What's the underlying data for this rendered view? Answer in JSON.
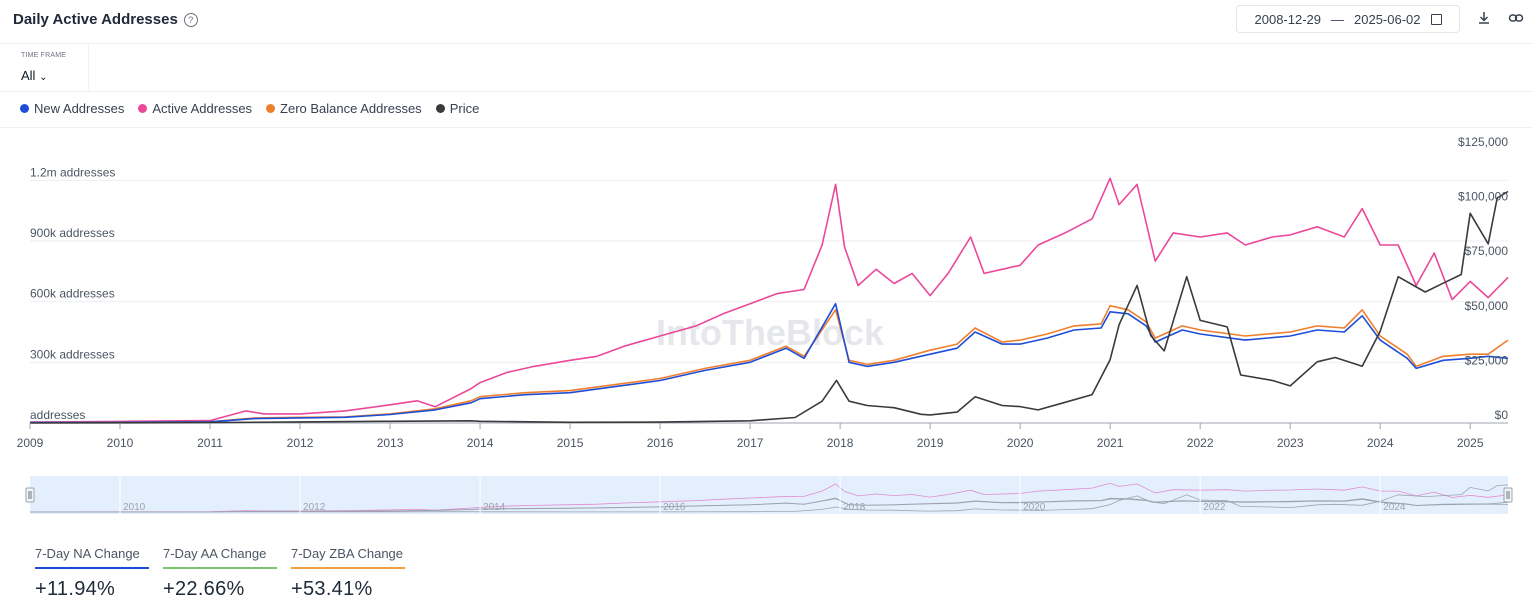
{
  "header": {
    "title": "Daily Active Addresses",
    "help_icon": "help-circle-icon",
    "date_from": "2008-12-29",
    "date_sep": "—",
    "date_to": "2025-06-02",
    "calendar_icon": "calendar-icon",
    "download_icon": "download-icon",
    "link_icon": "link-icon"
  },
  "timeframe": {
    "label": "TIME FRAME",
    "value": "All"
  },
  "legend": [
    {
      "name": "New Addresses",
      "color": "#1d4ed8"
    },
    {
      "name": "Active Addresses",
      "color": "#ec4899"
    },
    {
      "name": "Zero Balance Addresses",
      "color": "#f07f2d"
    },
    {
      "name": "Price",
      "color": "#3a3a3a"
    }
  ],
  "watermark": "IntoTheBlock",
  "stats": [
    {
      "label": "7-Day NA Change",
      "value": "+11.94%",
      "color": "#1d4ed8"
    },
    {
      "label": "7-Day AA Change",
      "value": "+22.66%",
      "color": "#7cc36e"
    },
    {
      "label": "7-Day ZBA Change",
      "value": "+53.41%",
      "color": "#f0a040"
    }
  ],
  "chart_data": {
    "type": "line",
    "x_ticks": [
      "2009",
      "2010",
      "2011",
      "2012",
      "2013",
      "2014",
      "2015",
      "2016",
      "2017",
      "2018",
      "2019",
      "2020",
      "2021",
      "2022",
      "2023",
      "2024",
      "2025"
    ],
    "y_left_ticks": [
      "addresses",
      "300k addresses",
      "600k addresses",
      "900k addresses",
      "1.2m addresses"
    ],
    "y_left_values": [
      0,
      300000,
      600000,
      900000,
      1200000
    ],
    "y_left_range": [
      0,
      1350000
    ],
    "y_right_ticks": [
      "$0",
      "$25,000",
      "$50,000",
      "$75,000",
      "$100,000",
      "$125,000"
    ],
    "y_right_values": [
      0,
      25000,
      50000,
      75000,
      100000,
      125000
    ],
    "y_right_range": [
      0,
      125000
    ],
    "x_range": [
      2009.0,
      2025.42
    ],
    "navigator_ticks": [
      "2010",
      "2012",
      "2014",
      "2016",
      "2018",
      "2020",
      "2022",
      "2024"
    ],
    "series": [
      {
        "name": "Active Addresses",
        "axis": "left",
        "color": "#ec4899",
        "x": [
          2009.0,
          2010.0,
          2011.0,
          2011.4,
          2011.6,
          2012.0,
          2012.5,
          2013.0,
          2013.3,
          2013.5,
          2013.9,
          2014.0,
          2014.3,
          2014.6,
          2015.0,
          2015.3,
          2015.6,
          2016.0,
          2016.4,
          2016.7,
          2017.0,
          2017.3,
          2017.6,
          2017.8,
          2017.95,
          2018.05,
          2018.2,
          2018.4,
          2018.6,
          2018.8,
          2019.0,
          2019.2,
          2019.45,
          2019.6,
          2019.8,
          2020.0,
          2020.2,
          2020.5,
          2020.8,
          2021.0,
          2021.1,
          2021.3,
          2021.5,
          2021.7,
          2022.0,
          2022.3,
          2022.5,
          2022.8,
          2023.0,
          2023.3,
          2023.6,
          2023.8,
          2024.0,
          2024.2,
          2024.4,
          2024.6,
          2024.8,
          2025.0,
          2025.2,
          2025.42
        ],
        "y": [
          5000,
          8000,
          12000,
          60000,
          45000,
          45000,
          60000,
          90000,
          110000,
          80000,
          170000,
          200000,
          250000,
          280000,
          310000,
          330000,
          380000,
          430000,
          480000,
          540000,
          590000,
          640000,
          660000,
          880000,
          1180000,
          870000,
          680000,
          760000,
          690000,
          740000,
          630000,
          740000,
          920000,
          740000,
          760000,
          780000,
          880000,
          940000,
          1010000,
          1210000,
          1080000,
          1180000,
          800000,
          940000,
          920000,
          940000,
          880000,
          920000,
          930000,
          970000,
          920000,
          1060000,
          880000,
          880000,
          680000,
          840000,
          610000,
          700000,
          620000,
          720000
        ]
      },
      {
        "name": "Zero Balance Addresses",
        "axis": "left",
        "color": "#f07f2d",
        "x": [
          2009.0,
          2010.0,
          2011.0,
          2011.5,
          2012.0,
          2012.5,
          2013.0,
          2013.5,
          2013.9,
          2014.0,
          2014.5,
          2015.0,
          2015.5,
          2016.0,
          2016.5,
          2017.0,
          2017.4,
          2017.6,
          2017.95,
          2018.1,
          2018.3,
          2018.6,
          2019.0,
          2019.3,
          2019.5,
          2019.8,
          2020.0,
          2020.3,
          2020.6,
          2020.9,
          2021.0,
          2021.2,
          2021.4,
          2021.5,
          2021.8,
          2022.0,
          2022.5,
          2023.0,
          2023.3,
          2023.6,
          2023.8,
          2024.0,
          2024.3,
          2024.4,
          2024.7,
          2025.0,
          2025.2,
          2025.42
        ],
        "y": [
          2000,
          3000,
          6000,
          25000,
          28000,
          30000,
          45000,
          70000,
          110000,
          130000,
          150000,
          160000,
          190000,
          220000,
          270000,
          310000,
          380000,
          330000,
          560000,
          310000,
          290000,
          310000,
          360000,
          390000,
          470000,
          400000,
          410000,
          440000,
          480000,
          490000,
          580000,
          560000,
          500000,
          420000,
          480000,
          460000,
          430000,
          450000,
          480000,
          470000,
          560000,
          430000,
          340000,
          280000,
          330000,
          340000,
          340000,
          410000
        ]
      },
      {
        "name": "New Addresses",
        "axis": "left",
        "color": "#1d4ed8",
        "x": [
          2009.0,
          2010.0,
          2011.0,
          2011.5,
          2012.0,
          2012.5,
          2013.0,
          2013.5,
          2013.9,
          2014.0,
          2014.5,
          2015.0,
          2015.5,
          2016.0,
          2016.5,
          2017.0,
          2017.4,
          2017.6,
          2017.95,
          2018.1,
          2018.3,
          2018.6,
          2019.0,
          2019.3,
          2019.5,
          2019.8,
          2020.0,
          2020.3,
          2020.6,
          2020.9,
          2021.0,
          2021.2,
          2021.4,
          2021.5,
          2021.8,
          2022.0,
          2022.5,
          2023.0,
          2023.3,
          2023.6,
          2023.8,
          2024.0,
          2024.3,
          2024.4,
          2024.7,
          2025.0,
          2025.2,
          2025.42
        ],
        "y": [
          2000,
          3000,
          6000,
          22000,
          25000,
          28000,
          42000,
          65000,
          100000,
          120000,
          140000,
          150000,
          180000,
          210000,
          260000,
          300000,
          370000,
          320000,
          590000,
          300000,
          280000,
          300000,
          340000,
          370000,
          450000,
          390000,
          390000,
          420000,
          460000,
          470000,
          550000,
          540000,
          480000,
          400000,
          460000,
          440000,
          410000,
          430000,
          460000,
          450000,
          530000,
          410000,
          320000,
          270000,
          310000,
          320000,
          330000,
          320000
        ]
      },
      {
        "name": "Price",
        "axis": "right",
        "color": "#3a3a3a",
        "x": [
          2009.0,
          2011.0,
          2012.0,
          2013.0,
          2013.9,
          2014.0,
          2015.0,
          2016.0,
          2017.0,
          2017.5,
          2017.8,
          2017.96,
          2018.1,
          2018.3,
          2018.6,
          2018.9,
          2019.0,
          2019.3,
          2019.5,
          2019.8,
          2020.0,
          2020.2,
          2020.5,
          2020.8,
          2021.0,
          2021.1,
          2021.3,
          2021.45,
          2021.6,
          2021.85,
          2022.0,
          2022.3,
          2022.45,
          2022.8,
          2023.0,
          2023.3,
          2023.5,
          2023.8,
          2024.0,
          2024.2,
          2024.5,
          2024.7,
          2024.9,
          2025.0,
          2025.2,
          2025.3,
          2025.42
        ],
        "y": [
          0,
          200,
          500,
          800,
          1000,
          800,
          300,
          400,
          1000,
          2500,
          10000,
          19500,
          10000,
          8000,
          7000,
          4000,
          3700,
          5000,
          12000,
          8000,
          7500,
          6000,
          9500,
          13000,
          29000,
          45000,
          63000,
          40000,
          33000,
          67000,
          47000,
          44000,
          22000,
          19500,
          17000,
          28000,
          30000,
          26000,
          42000,
          67000,
          60000,
          64000,
          68000,
          96000,
          82000,
          103000,
          106000
        ]
      }
    ]
  }
}
